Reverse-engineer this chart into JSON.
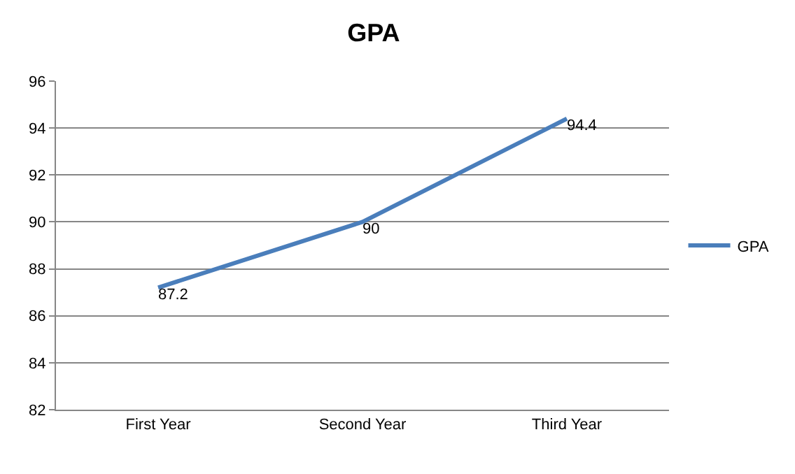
{
  "chart_data": {
    "type": "line",
    "title": "GPA",
    "categories": [
      "First Year",
      "Second Year",
      "Third Year"
    ],
    "series": [
      {
        "name": "GPA",
        "color": "#4a7ebb",
        "values": [
          87.2,
          90,
          94.4
        ]
      }
    ],
    "ylim": [
      82,
      96
    ],
    "yticks": [
      82,
      84,
      86,
      88,
      90,
      92,
      94,
      96
    ],
    "grid": "y",
    "legend": "right",
    "marker": "none",
    "line_style": "solid",
    "data_labels": true
  }
}
